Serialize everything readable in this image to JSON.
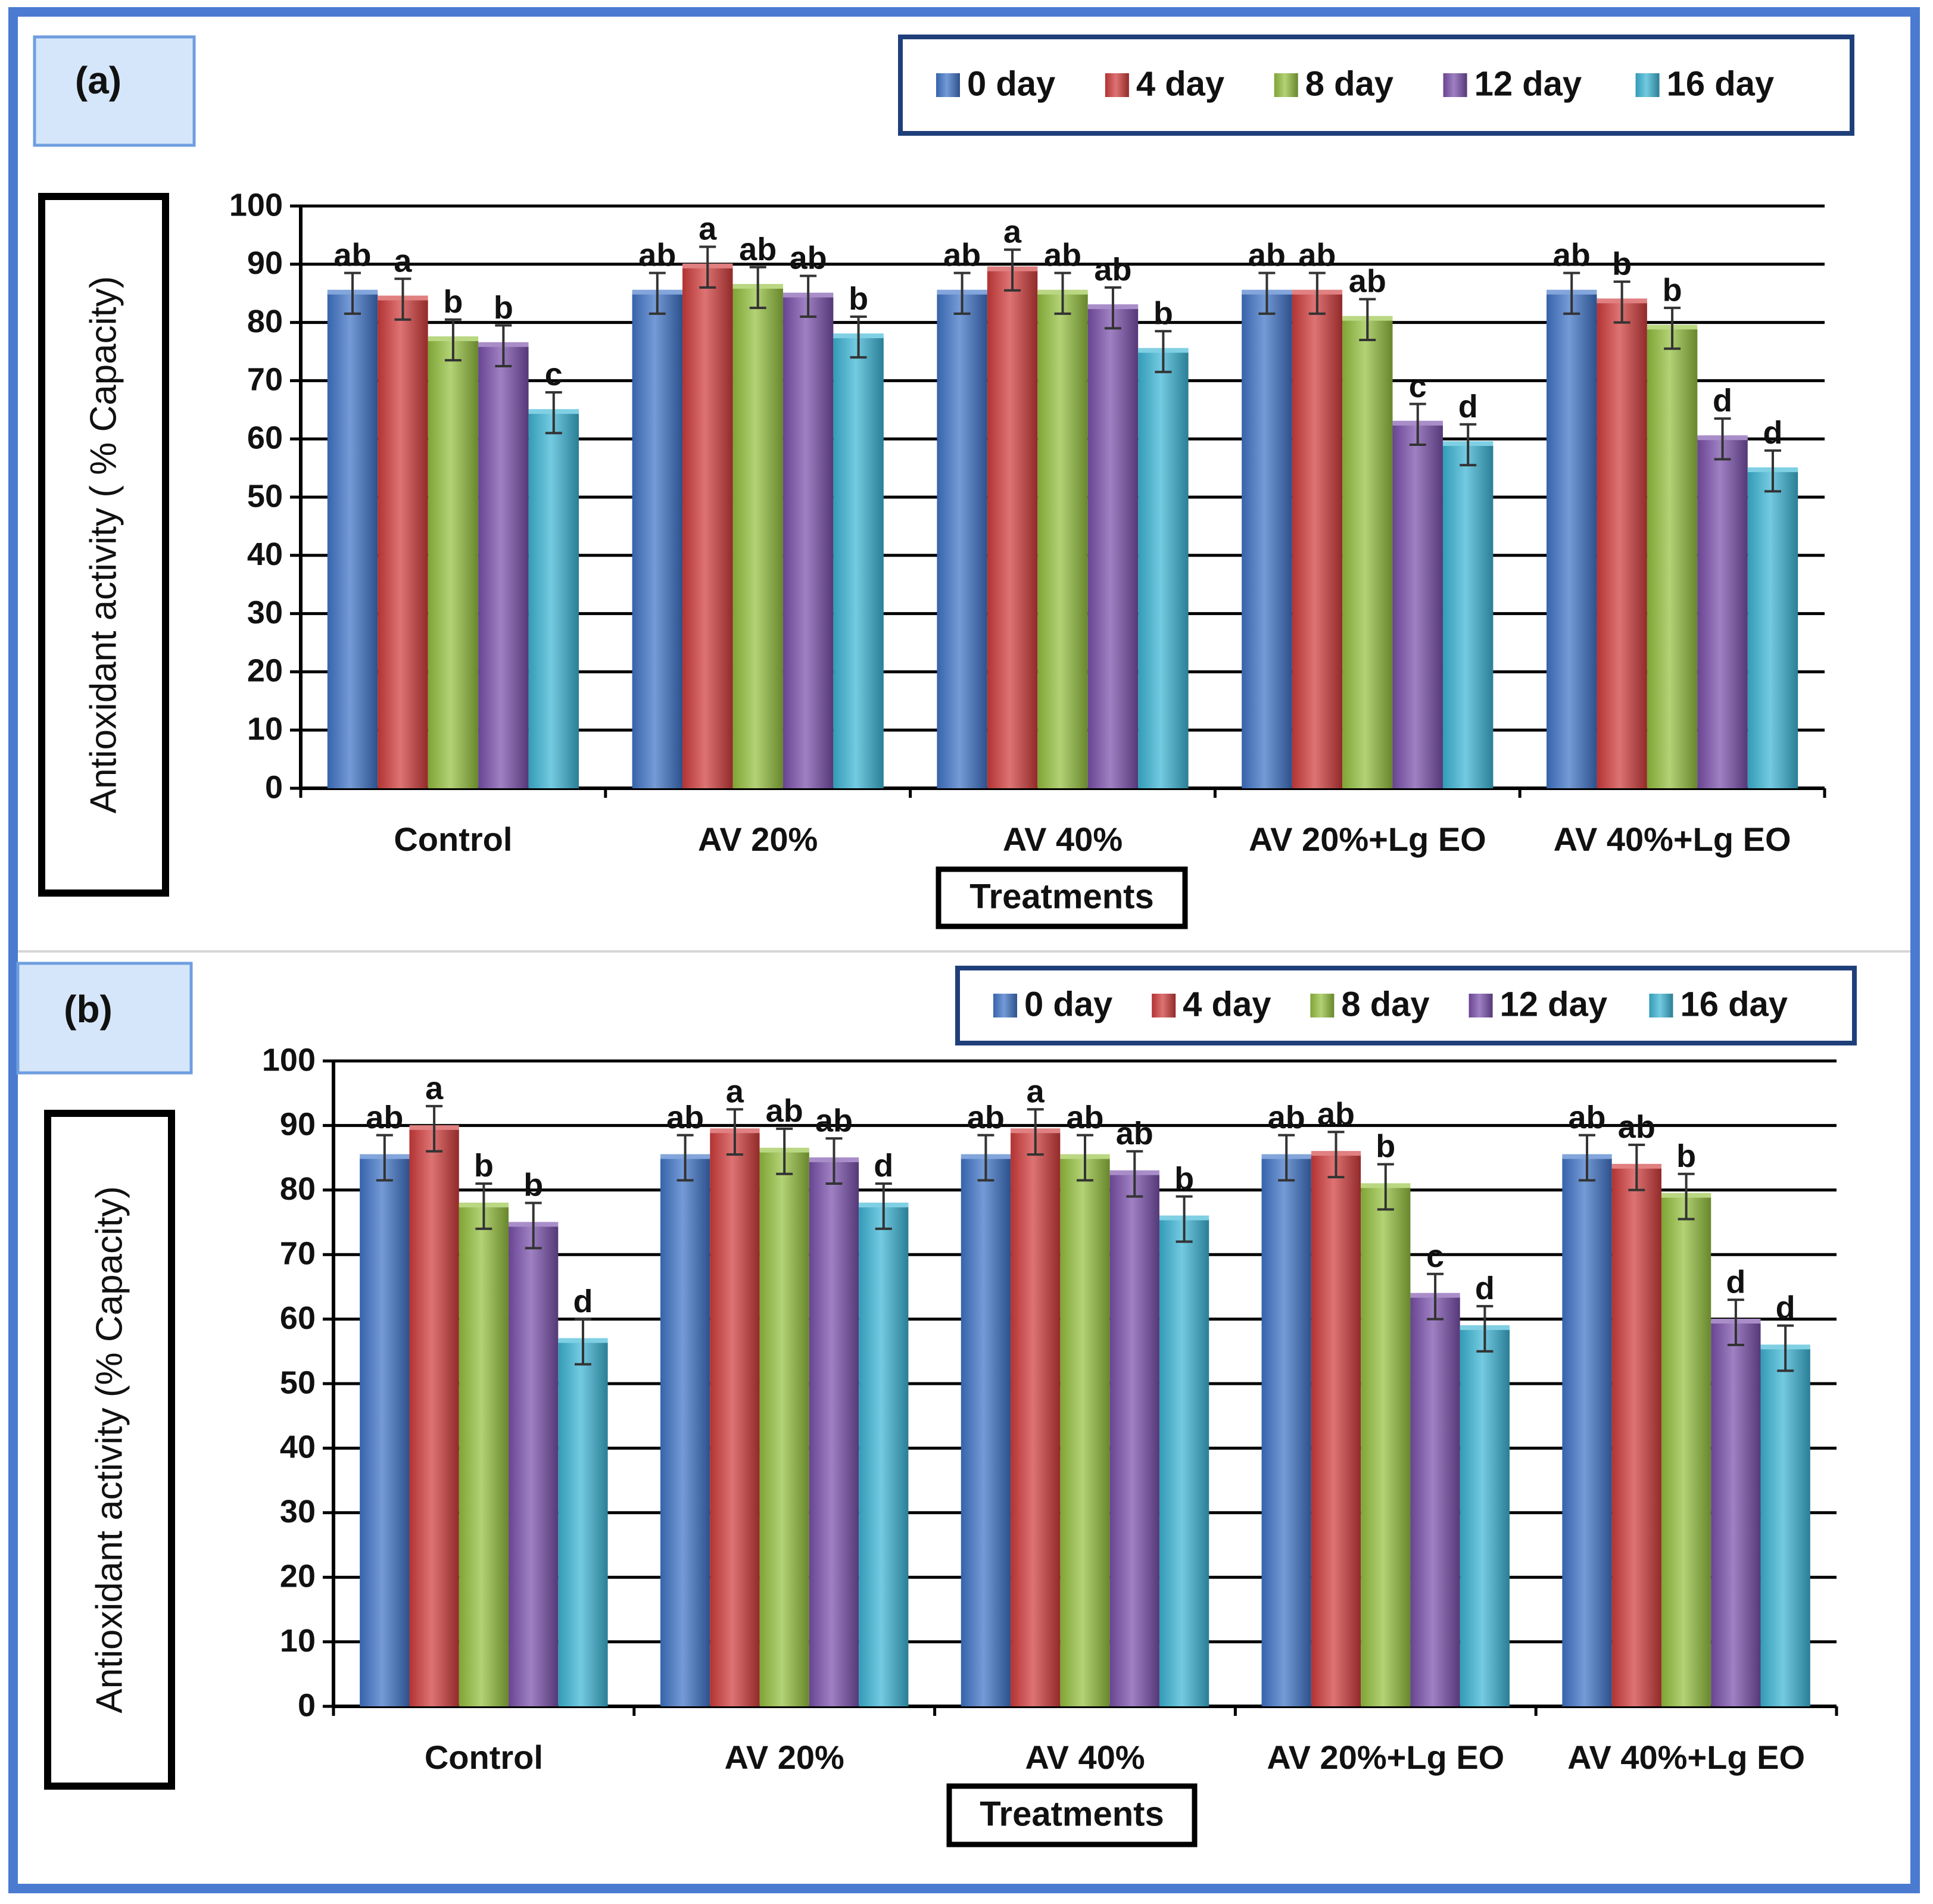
{
  "colors": {
    "frame": "#4a7bd0",
    "panel_tag_fill": "#d6e6fa",
    "panel_tag_border": "#6f9ee0",
    "legend_border": "#1f3f7a",
    "series": [
      "#3f74c8",
      "#d13c3c",
      "#95c13f",
      "#7a50ac",
      "#3cb6d6"
    ]
  },
  "chart_data": [
    {
      "type": "bar",
      "panel_label": "(a)",
      "ylabel": "Antioxidant activity ( % Capacity)",
      "xlabel": "Treatments",
      "categories": [
        "Control",
        "AV 20%",
        "AV 40%",
        "AV 20%+Lg EO",
        "AV 40%+Lg EO"
      ],
      "ylim": [
        0,
        100
      ],
      "yticks": [
        0,
        10,
        20,
        30,
        40,
        50,
        60,
        70,
        80,
        90,
        100
      ],
      "grid": true,
      "legend_position": "top-right",
      "error_bars": [
        3.5,
        3.5,
        3.5,
        3.5,
        3.5
      ],
      "series": [
        {
          "name": "0 day",
          "values": [
            85,
            85,
            85,
            85,
            85
          ],
          "letters": [
            "ab",
            "ab",
            "ab",
            "ab",
            "ab"
          ]
        },
        {
          "name": "4 day",
          "values": [
            84,
            89.5,
            89,
            85,
            83.5
          ],
          "letters": [
            "a",
            "a",
            "a",
            "ab",
            "b"
          ]
        },
        {
          "name": "8 day",
          "values": [
            77,
            86,
            85,
            80.5,
            79
          ],
          "letters": [
            "b",
            "ab",
            "ab",
            "ab",
            "b"
          ]
        },
        {
          "name": "12 day",
          "values": [
            76,
            84.5,
            82.5,
            62.5,
            60
          ],
          "letters": [
            "b",
            "ab",
            "ab",
            "c",
            "d"
          ]
        },
        {
          "name": "16 day",
          "values": [
            64.5,
            77.5,
            75,
            59,
            54.5
          ],
          "letters": [
            "c",
            "b",
            "b",
            "d",
            "d"
          ]
        }
      ]
    },
    {
      "type": "bar",
      "panel_label": "(b)",
      "ylabel": "Antioxidant activity  (% Capacity)",
      "xlabel": "Treatments",
      "categories": [
        "Control",
        "AV 20%",
        "AV 40%",
        "AV 20%+Lg EO",
        "AV 40%+Lg EO"
      ],
      "ylim": [
        0,
        100
      ],
      "yticks": [
        0,
        10,
        20,
        30,
        40,
        50,
        60,
        70,
        80,
        90,
        100
      ],
      "grid": true,
      "legend_position": "top-right",
      "error_bars": [
        3.5,
        3.5,
        3.5,
        3.5,
        3.5
      ],
      "series": [
        {
          "name": "0 day",
          "values": [
            85,
            85,
            85,
            85,
            85
          ],
          "letters": [
            "ab",
            "ab",
            "ab",
            "ab",
            "ab"
          ]
        },
        {
          "name": "4 day",
          "values": [
            89.5,
            89,
            89,
            85.5,
            83.5
          ],
          "letters": [
            "a",
            "a",
            "a",
            "ab",
            "ab"
          ]
        },
        {
          "name": "8 day",
          "values": [
            77.5,
            86,
            85,
            80.5,
            79
          ],
          "letters": [
            "b",
            "ab",
            "ab",
            "b",
            "b"
          ]
        },
        {
          "name": "12 day",
          "values": [
            74.5,
            84.5,
            82.5,
            63.5,
            59.5
          ],
          "letters": [
            "b",
            "ab",
            "ab",
            "c",
            "d"
          ]
        },
        {
          "name": "16 day",
          "values": [
            56.5,
            77.5,
            75.5,
            58.5,
            55.5
          ],
          "letters": [
            "d",
            "d",
            "b",
            "d",
            "d"
          ]
        }
      ]
    }
  ]
}
